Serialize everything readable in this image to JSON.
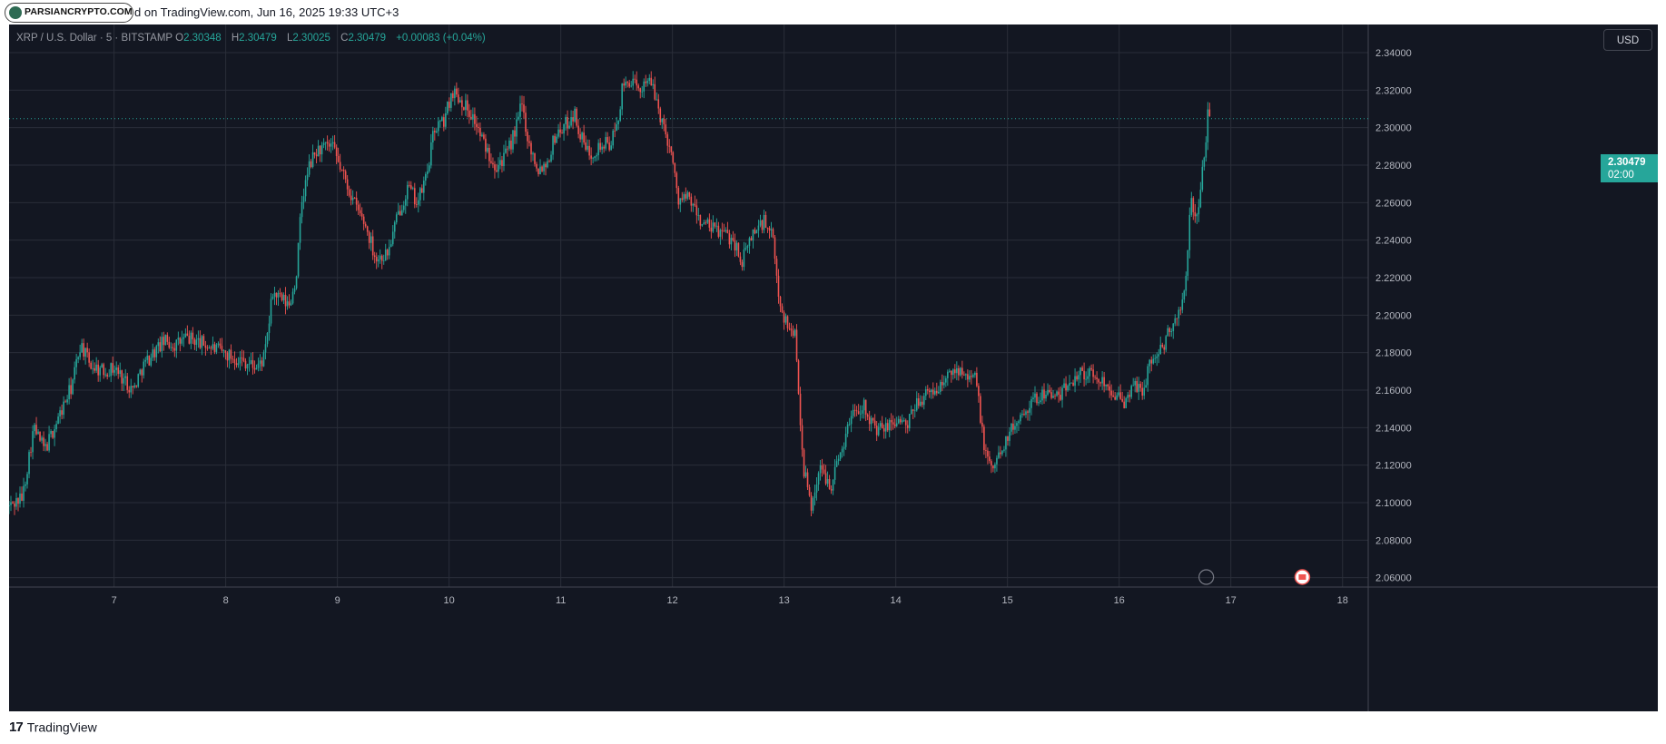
{
  "header": {
    "logo_text": "PARSIANCRYPTO.COM",
    "published_text": "d on TradingView.com, Jun 16, 2025 19:33 UTC+3"
  },
  "legend": {
    "symbol": "XRP / U.S. Dollar · 5 · BITSTAMP",
    "open_key": "O",
    "open": "2.30348",
    "high_key": "H",
    "high": "2.30479",
    "low_key": "L",
    "low": "2.30025",
    "close_key": "C",
    "close": "2.30479",
    "change": "+0.00083 (+0.04%)"
  },
  "currency_button": "USD",
  "last_price": {
    "value": "2.30479",
    "countdown": "02:00"
  },
  "footer": {
    "brand_mark": "17",
    "brand_name": "TradingView"
  },
  "colors": {
    "background": "#131722",
    "up": "#26a69a",
    "down": "#ef5350",
    "grid": "#2a2e39",
    "axis_text": "#b2b5be"
  },
  "chart_data": {
    "type": "candlestick",
    "symbol": "XRP / U.S. Dollar",
    "interval": "5",
    "exchange": "BITSTAMP",
    "grid": true,
    "ylim": [
      2.055,
      2.355
    ],
    "y_ticks": [
      "2.34000",
      "2.32000",
      "2.30000",
      "2.28000",
      "2.26000",
      "2.24000",
      "2.22000",
      "2.20000",
      "2.18000",
      "2.16000",
      "2.14000",
      "2.12000",
      "2.10000",
      "2.08000",
      "2.06000"
    ],
    "xlim": [
      6.06,
      18.23
    ],
    "x_ticks": [
      "7",
      "8",
      "9",
      "10",
      "11",
      "12",
      "13",
      "14",
      "15",
      "16",
      "17",
      "18"
    ],
    "last_price": 2.30479,
    "price_path": [
      [
        6.06,
        2.098
      ],
      [
        6.18,
        2.103
      ],
      [
        6.28,
        2.14
      ],
      [
        6.38,
        2.128
      ],
      [
        6.55,
        2.152
      ],
      [
        6.62,
        2.162
      ],
      [
        6.7,
        2.185
      ],
      [
        6.78,
        2.174
      ],
      [
        6.9,
        2.17
      ],
      [
        7.0,
        2.172
      ],
      [
        7.1,
        2.165
      ],
      [
        7.17,
        2.16
      ],
      [
        7.25,
        2.172
      ],
      [
        7.35,
        2.18
      ],
      [
        7.45,
        2.186
      ],
      [
        7.55,
        2.184
      ],
      [
        7.65,
        2.188
      ],
      [
        7.75,
        2.186
      ],
      [
        7.9,
        2.182
      ],
      [
        8.05,
        2.178
      ],
      [
        8.15,
        2.176
      ],
      [
        8.28,
        2.172
      ],
      [
        8.35,
        2.178
      ],
      [
        8.42,
        2.212
      ],
      [
        8.5,
        2.208
      ],
      [
        8.57,
        2.205
      ],
      [
        8.63,
        2.22
      ],
      [
        8.68,
        2.26
      ],
      [
        8.75,
        2.28
      ],
      [
        8.82,
        2.288
      ],
      [
        8.95,
        2.29
      ],
      [
        9.05,
        2.275
      ],
      [
        9.15,
        2.26
      ],
      [
        9.25,
        2.248
      ],
      [
        9.35,
        2.23
      ],
      [
        9.45,
        2.233
      ],
      [
        9.55,
        2.255
      ],
      [
        9.63,
        2.268
      ],
      [
        9.72,
        2.26
      ],
      [
        9.8,
        2.275
      ],
      [
        9.87,
        2.3
      ],
      [
        9.95,
        2.303
      ],
      [
        10.03,
        2.32
      ],
      [
        10.12,
        2.314
      ],
      [
        10.22,
        2.305
      ],
      [
        10.32,
        2.29
      ],
      [
        10.42,
        2.28
      ],
      [
        10.52,
        2.286
      ],
      [
        10.6,
        2.3
      ],
      [
        10.65,
        2.313
      ],
      [
        10.72,
        2.29
      ],
      [
        10.8,
        2.278
      ],
      [
        10.88,
        2.282
      ],
      [
        10.95,
        2.296
      ],
      [
        11.05,
        2.302
      ],
      [
        11.12,
        2.308
      ],
      [
        11.18,
        2.295
      ],
      [
        11.25,
        2.286
      ],
      [
        11.35,
        2.29
      ],
      [
        11.45,
        2.292
      ],
      [
        11.5,
        2.3
      ],
      [
        11.55,
        2.32
      ],
      [
        11.62,
        2.326
      ],
      [
        11.7,
        2.318
      ],
      [
        11.77,
        2.328
      ],
      [
        11.85,
        2.316
      ],
      [
        11.92,
        2.3
      ],
      [
        11.98,
        2.29
      ],
      [
        12.05,
        2.262
      ],
      [
        12.15,
        2.262
      ],
      [
        12.25,
        2.25
      ],
      [
        12.35,
        2.246
      ],
      [
        12.45,
        2.244
      ],
      [
        12.55,
        2.24
      ],
      [
        12.62,
        2.228
      ],
      [
        12.72,
        2.244
      ],
      [
        12.82,
        2.25
      ],
      [
        12.9,
        2.24
      ],
      [
        12.95,
        2.21
      ],
      [
        13.02,
        2.195
      ],
      [
        13.1,
        2.19
      ],
      [
        13.17,
        2.12
      ],
      [
        13.24,
        2.098
      ],
      [
        13.32,
        2.118
      ],
      [
        13.42,
        2.11
      ],
      [
        13.52,
        2.13
      ],
      [
        13.62,
        2.15
      ],
      [
        13.72,
        2.152
      ],
      [
        13.82,
        2.138
      ],
      [
        13.92,
        2.14
      ],
      [
        14.02,
        2.145
      ],
      [
        14.1,
        2.14
      ],
      [
        14.2,
        2.155
      ],
      [
        14.3,
        2.158
      ],
      [
        14.4,
        2.162
      ],
      [
        14.5,
        2.17
      ],
      [
        14.6,
        2.172
      ],
      [
        14.72,
        2.165
      ],
      [
        14.8,
        2.125
      ],
      [
        14.88,
        2.118
      ],
      [
        14.95,
        2.13
      ],
      [
        15.05,
        2.14
      ],
      [
        15.15,
        2.15
      ],
      [
        15.25,
        2.155
      ],
      [
        15.35,
        2.16
      ],
      [
        15.45,
        2.155
      ],
      [
        15.55,
        2.164
      ],
      [
        15.65,
        2.17
      ],
      [
        15.75,
        2.168
      ],
      [
        15.85,
        2.165
      ],
      [
        15.95,
        2.16
      ],
      [
        16.05,
        2.15
      ],
      [
        16.12,
        2.165
      ],
      [
        16.2,
        2.158
      ],
      [
        16.28,
        2.175
      ],
      [
        16.38,
        2.182
      ],
      [
        16.48,
        2.195
      ],
      [
        16.56,
        2.205
      ],
      [
        16.6,
        2.218
      ],
      [
        16.64,
        2.262
      ],
      [
        16.68,
        2.255
      ],
      [
        16.72,
        2.256
      ],
      [
        16.75,
        2.282
      ],
      [
        16.78,
        2.292
      ],
      [
        16.8,
        2.318
      ],
      [
        16.81,
        2.3048
      ]
    ]
  }
}
